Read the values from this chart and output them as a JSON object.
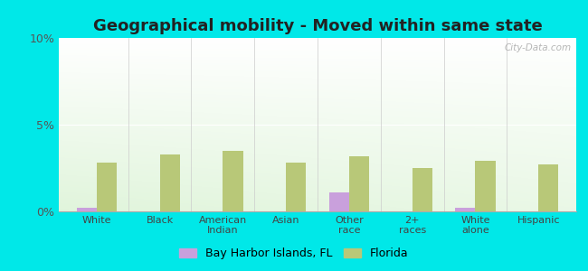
{
  "title": "Geographical mobility - Moved within same state",
  "categories": [
    "White",
    "Black",
    "American\nIndian",
    "Asian",
    "Other\nrace",
    "2+\nraces",
    "White\nalone",
    "Hispanic"
  ],
  "bay_harbor_values": [
    0.2,
    0.0,
    0.0,
    0.0,
    1.1,
    0.0,
    0.2,
    0.0
  ],
  "florida_values": [
    2.8,
    3.3,
    3.5,
    2.8,
    3.2,
    2.5,
    2.9,
    2.7
  ],
  "bay_harbor_color": "#c9a0dc",
  "florida_color": "#b8c878",
  "background_color": "#00e8e8",
  "ylim": [
    0,
    10
  ],
  "yticks": [
    0,
    5,
    10
  ],
  "ytick_labels": [
    "0%",
    "5%",
    "10%"
  ],
  "bar_width": 0.32,
  "legend_label_1": "Bay Harbor Islands, FL",
  "legend_label_2": "Florida",
  "title_fontsize": 13,
  "watermark": "City-Data.com"
}
